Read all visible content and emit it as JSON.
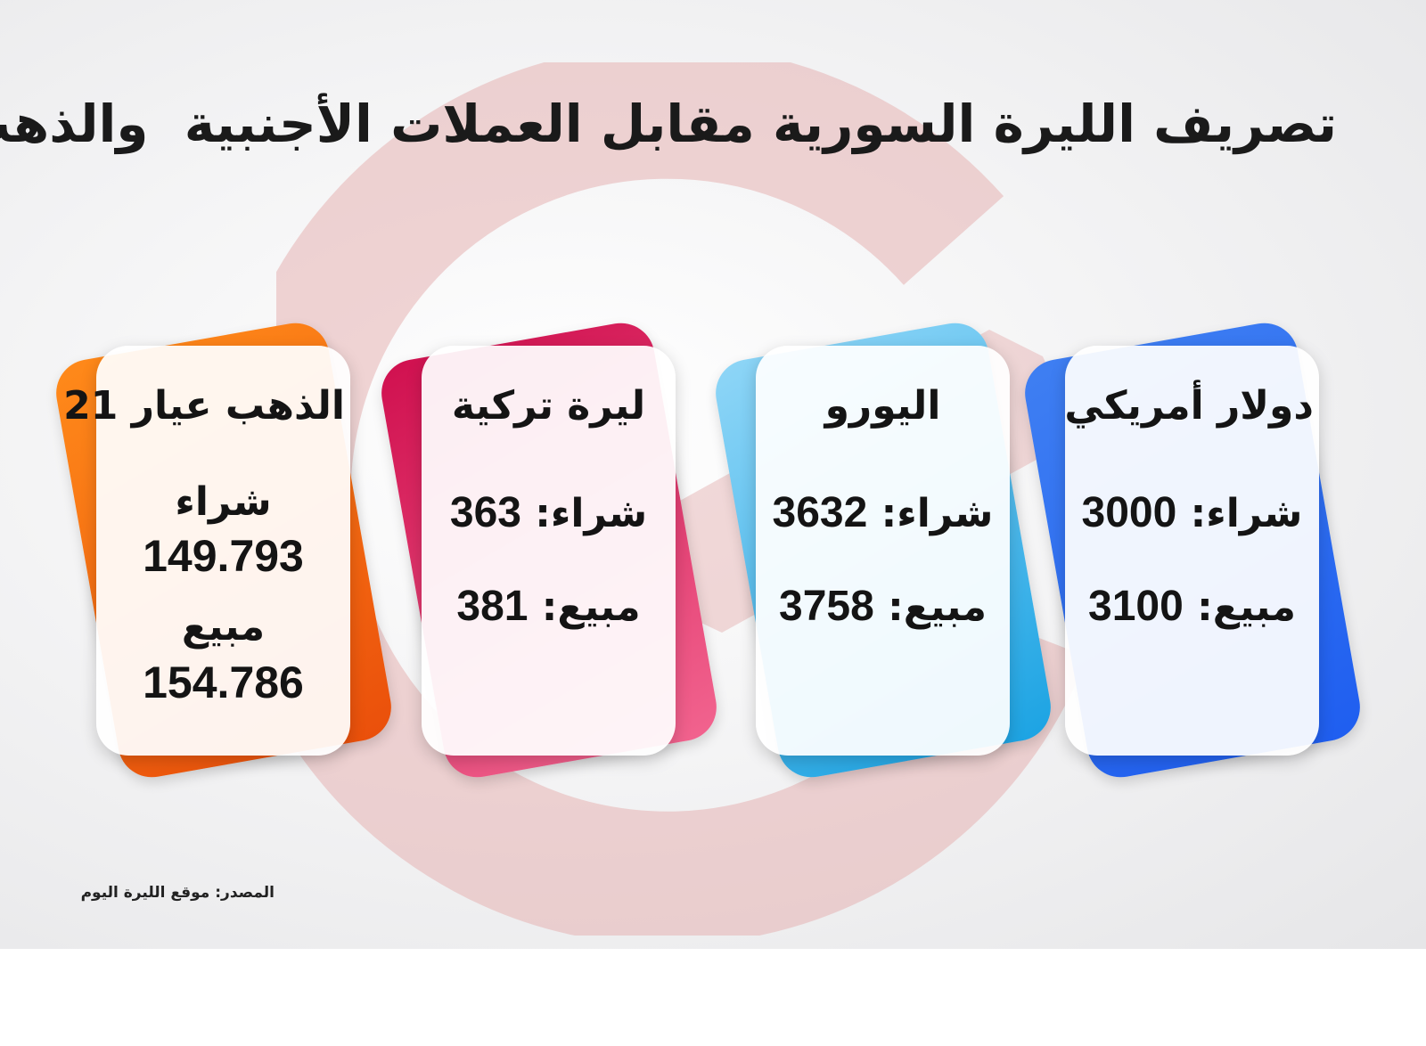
{
  "title": "تصريف الليرة السورية مقابل العملات الأجنبية  والذهب",
  "colors": {
    "gold_accent": "#f26a0f",
    "lira_accent": "#e0245e",
    "euro_accent": "#3cb4ea",
    "dollar_accent": "#2f6df0",
    "watermark": "#e9b7b7"
  },
  "cards": {
    "dollar": {
      "name": "دولار أمريكي",
      "buy_label": "شراء:",
      "buy_value": "3000",
      "sell_label": "مبيع:",
      "sell_value": "3100"
    },
    "euro": {
      "name": "اليورو",
      "buy_label": "شراء:",
      "buy_value": "3632",
      "sell_label": "مبيع:",
      "sell_value": "3758"
    },
    "lira": {
      "name": "ليرة تركية",
      "buy_label": "شراء:",
      "buy_value": "363",
      "sell_label": "مبيع:",
      "sell_value": "381"
    },
    "gold": {
      "name": "الذهب عيار 21",
      "buy_label": "شراء",
      "buy_value": "149.793",
      "sell_label": "مبيع",
      "sell_value": "154.786"
    }
  },
  "source": "المصدر: موقع الليرة اليوم"
}
